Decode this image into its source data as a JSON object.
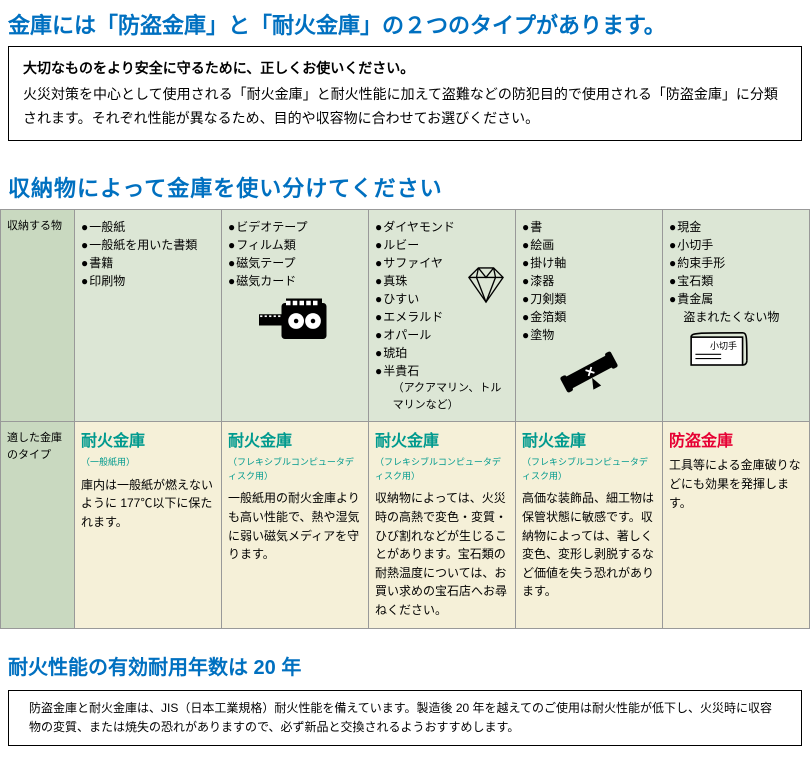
{
  "colors": {
    "heading_blue": "#0070c0",
    "table_header_bg": "#c9d9c0",
    "items_row_bg": "#dce6d5",
    "type_row_bg": "#f5f0d8",
    "teal": "#009a8e",
    "red": "#e60033",
    "border": "#999999",
    "box_border": "#000000",
    "text": "#000000",
    "bg": "#ffffff"
  },
  "h1": "金庫には「防盗金庫」と「耐火金庫」の２つのタイプがあります。",
  "intro": {
    "bold": "大切なものをより安全に守るために、正しくお使いください。",
    "body": "火災対策を中心として使用される「耐火金庫」と耐火性能に加えて盗難などの防犯目的で使用される「防盗金庫」に分類されます。それぞれ性能が異なるため、目的や収容物に合わせてお選びください。"
  },
  "h2": "収納物によって金庫を使い分けてください",
  "table": {
    "row_items_header": "収納する物",
    "row_type_header": "適した金庫のタイプ",
    "cols": [
      {
        "items": [
          "一般紙",
          "一般紙を用いた書類",
          "書籍",
          "印刷物"
        ],
        "type_label": "耐火金庫",
        "type_sub": "（一般紙用）",
        "type_color": "teal",
        "desc": "庫内は一般紙が燃えないように 177℃以下に保たれます。"
      },
      {
        "items": [
          "ビデオテープ",
          "フィルム類",
          "磁気テープ",
          "磁気カード"
        ],
        "icon": "film",
        "type_label": "耐火金庫",
        "type_sub": "（フレキシブルコンピュータディスク用）",
        "type_color": "teal",
        "desc": "一般紙用の耐火金庫よりも高い性能で、熱や湿気に弱い磁気メディアを守ります。"
      },
      {
        "items": [
          "ダイヤモンド",
          "ルビー",
          "サファイヤ",
          "真珠",
          "ひすい",
          "エメラルド",
          "オパール",
          "琥珀",
          "半貴石"
        ],
        "items_extra": "（アクアマリン、トルマリンなど）",
        "icon": "diamond",
        "type_label": "耐火金庫",
        "type_sub": "（フレキシブルコンピュータディスク用）",
        "type_color": "teal",
        "desc": "収納物によっては、火災時の高熱で変色・変質・ひび割れなどが生じることがあります。宝石類の耐熱温度については、お買い求めの宝石店へお尋ねください。"
      },
      {
        "items": [
          "書",
          "絵画",
          "掛け軸",
          "漆器",
          "刀剣類",
          "金箔類",
          "塗物"
        ],
        "icon": "scroll",
        "type_label": "耐火金庫",
        "type_sub": "（フレキシブルコンピュータディスク用）",
        "type_color": "teal",
        "desc": "高価な装飾品、細工物は保管状態に敏感です。収納物によっては、著しく変色、変形し剥脱するなど価値を失う恐れがあります。"
      },
      {
        "items": [
          "現金",
          "小切手",
          "約束手形",
          "宝石類",
          "貴金属",
          "盗まれたくない物"
        ],
        "last_indent_index": 5,
        "icon": "cheque",
        "cheque_label": "小切手",
        "type_label": "防盗金庫",
        "type_sub": "",
        "type_color": "red",
        "desc": "工具等による金庫破りなどにも効果を発揮します。"
      }
    ]
  },
  "h3": "耐火性能の有効耐用年数は 20 年",
  "footnote": "防盗金庫と耐火金庫は、JIS（日本工業規格）耐火性能を備えています。製造後 20 年を越えてのご使用は耐火性能が低下し、火災時に収容物の変質、または焼失の恐れがありますので、必ず新品と交換されるようおすすめします。"
}
